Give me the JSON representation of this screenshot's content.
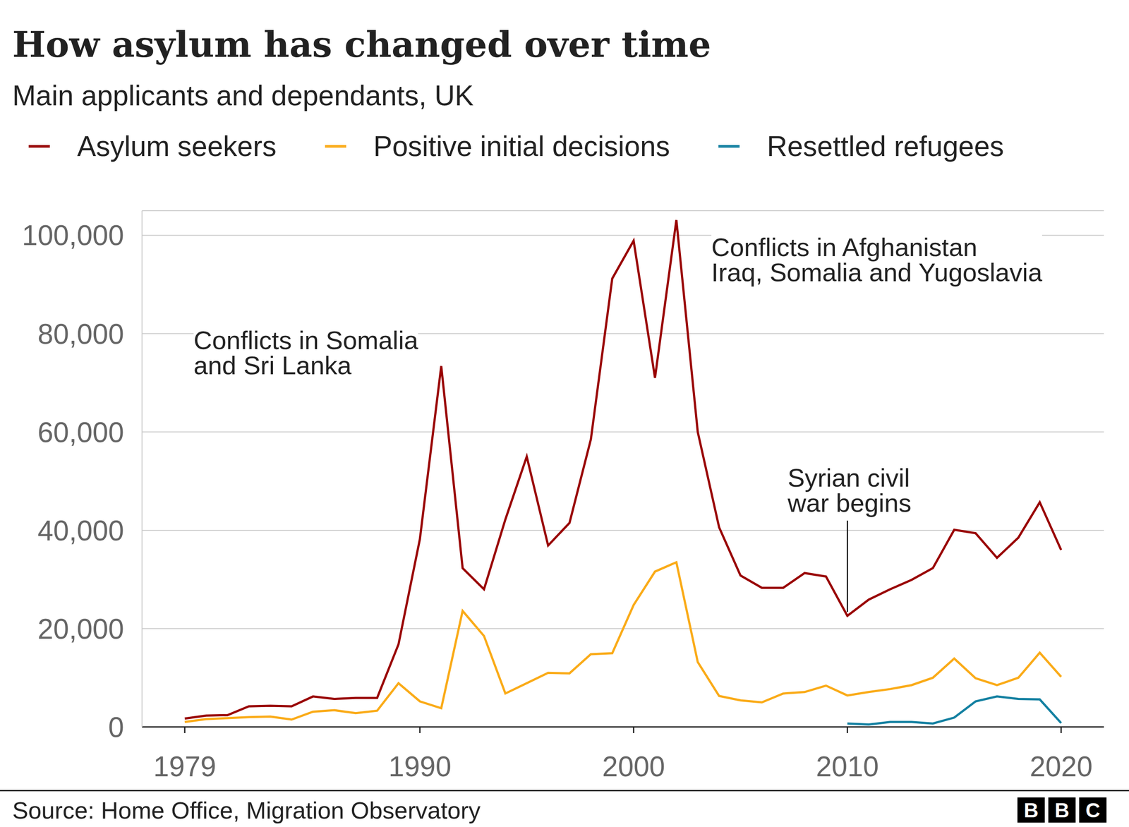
{
  "chart_data": {
    "type": "line",
    "title": "How asylum has changed over time",
    "subtitle": "Main applicants and dependants, UK",
    "source": "Source: Home Office, Migration Observatory",
    "logo": "BBC",
    "x": [
      1979,
      1980,
      1981,
      1982,
      1983,
      1984,
      1985,
      1986,
      1987,
      1988,
      1989,
      1990,
      1991,
      1992,
      1993,
      1994,
      1995,
      1996,
      1997,
      1998,
      1999,
      2000,
      2001,
      2002,
      2003,
      2004,
      2005,
      2006,
      2007,
      2008,
      2009,
      2010,
      2011,
      2012,
      2013,
      2014,
      2015,
      2016,
      2017,
      2018,
      2019,
      2020
    ],
    "series": [
      {
        "name": "Asylum seekers",
        "color": "#990000",
        "values": [
          1700,
          2300,
          2400,
          4200,
          4300,
          4200,
          6200,
          5700,
          5900,
          5900,
          16800,
          38200,
          73400,
          32300,
          28000,
          42200,
          55000,
          36900,
          41500,
          58500,
          91200,
          98900,
          71000,
          103100,
          60000,
          40600,
          30800,
          28300,
          28300,
          31300,
          30600,
          22600,
          25900,
          28000,
          29900,
          32300,
          40100,
          39400,
          34400,
          38500,
          45700,
          36000
        ]
      },
      {
        "name": "Positive initial decisions",
        "color": "#FAAB18",
        "values": [
          1000,
          1600,
          1800,
          2000,
          2100,
          1500,
          3100,
          3400,
          2800,
          3300,
          8900,
          5200,
          3800,
          23600,
          18500,
          6800,
          8900,
          11000,
          10900,
          14800,
          15000,
          24800,
          31600,
          33500,
          13200,
          6300,
          5400,
          5000,
          6800,
          7100,
          8400,
          6400,
          7100,
          7700,
          8500,
          10000,
          13900,
          9900,
          8500,
          10000,
          15100,
          10200
        ]
      },
      {
        "name": "Resettled refugees",
        "color": "#1380A1",
        "values": [
          null,
          null,
          null,
          null,
          null,
          null,
          null,
          null,
          null,
          null,
          null,
          null,
          null,
          null,
          null,
          null,
          null,
          null,
          null,
          null,
          null,
          null,
          null,
          null,
          null,
          null,
          null,
          null,
          null,
          null,
          null,
          700,
          500,
          1000,
          1000,
          700,
          1900,
          5200,
          6200,
          5700,
          5600,
          800
        ]
      }
    ],
    "xlim": [
      1977,
      2022
    ],
    "xticks": [
      1979,
      1990,
      2000,
      2010,
      2020
    ],
    "ylim": [
      0,
      105000
    ],
    "yticks": [
      0,
      {
        "value": 20000,
        "label": "20,000"
      },
      {
        "value": 40000,
        "label": "40,000"
      },
      {
        "value": 60000,
        "label": "60,000"
      },
      {
        "value": 80000,
        "label": "80,000"
      },
      {
        "value": 100000,
        "label": "100,000"
      }
    ],
    "grid": true,
    "legend": "top",
    "annotations": [
      {
        "text": [
          "Conflicts in Somalia",
          "and Sri Lanka"
        ]
      },
      {
        "text": [
          "Conflicts in Afghanistan",
          "Iraq, Somalia and Yugoslavia"
        ]
      },
      {
        "text": [
          "Syrian civil",
          "war begins"
        ],
        "x": 2010
      }
    ]
  }
}
